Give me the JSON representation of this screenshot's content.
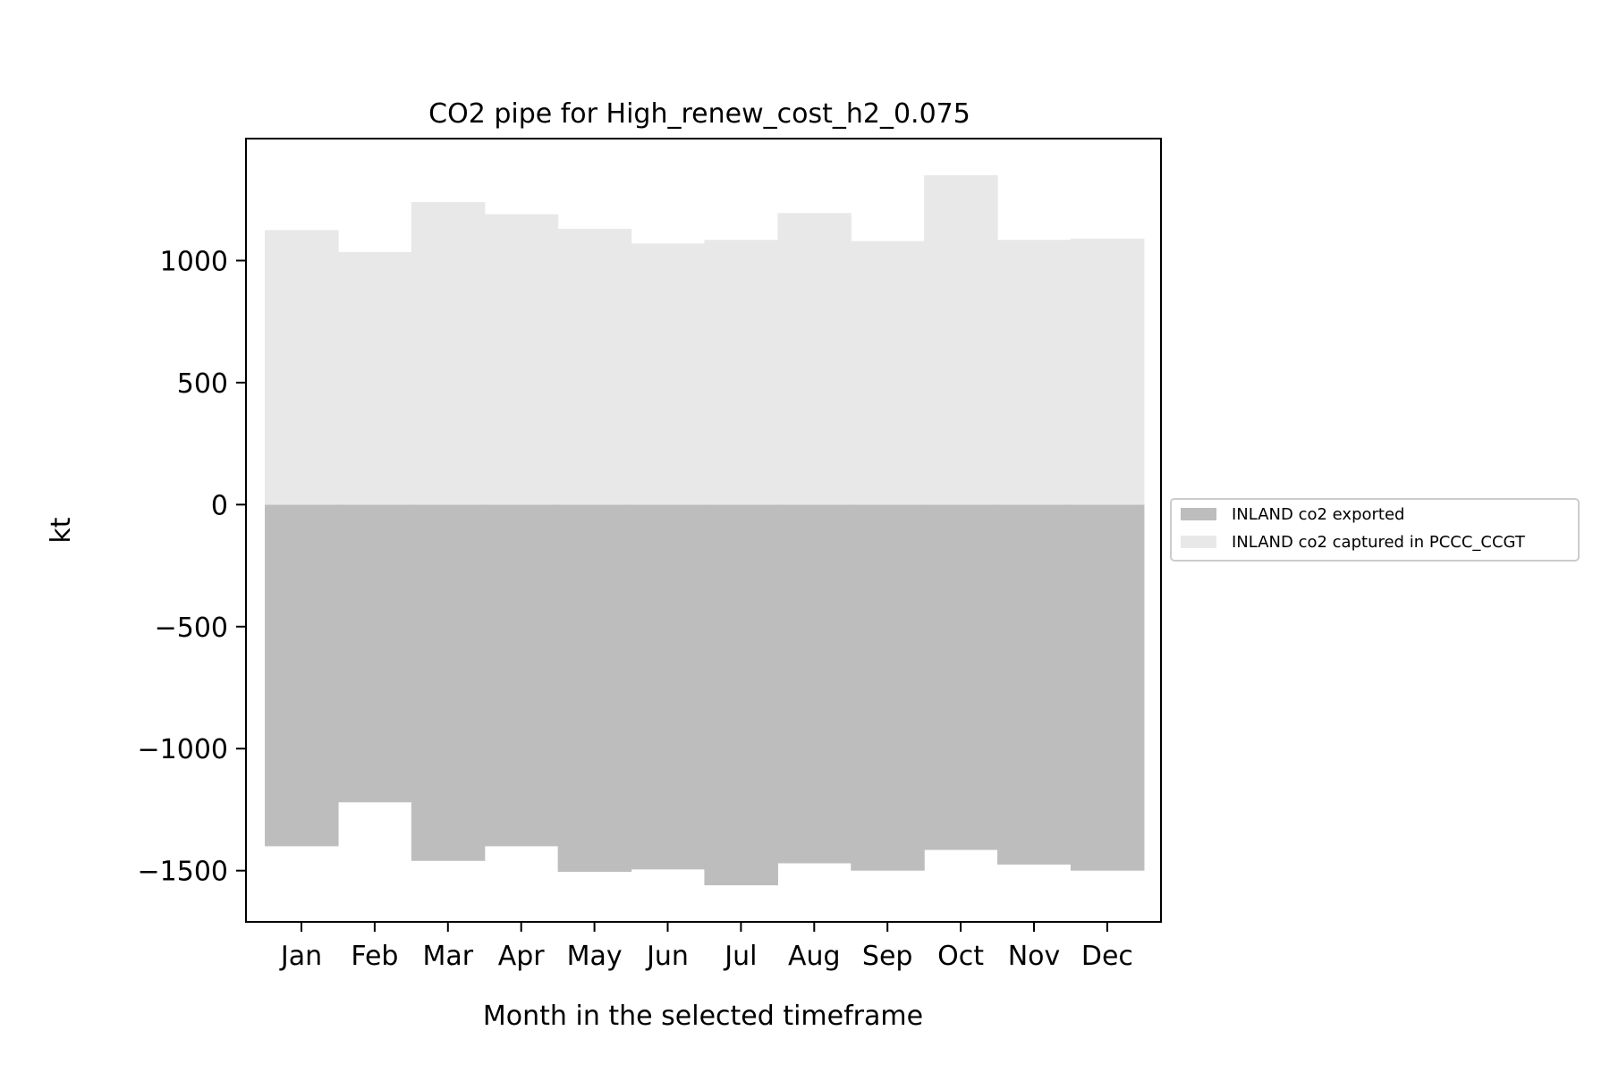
{
  "chart_data": {
    "type": "area",
    "title": "CO2 pipe for High_renew_cost_h2_0.075",
    "xlabel": "Month in the selected timeframe",
    "ylabel": "kt",
    "categories": [
      "Jan",
      "Feb",
      "Mar",
      "Apr",
      "May",
      "Jun",
      "Jul",
      "Aug",
      "Sep",
      "Oct",
      "Nov",
      "Dec"
    ],
    "series": [
      {
        "name": "INLAND co2 exported",
        "values": [
          -1400,
          -1220,
          -1460,
          -1400,
          -1505,
          -1495,
          -1560,
          -1470,
          -1500,
          -1415,
          -1475,
          -1500
        ],
        "color": "#bdbdbd"
      },
      {
        "name": "INLAND co2 captured in PCCC_CCGT",
        "values": [
          1125,
          1035,
          1240,
          1190,
          1130,
          1070,
          1085,
          1195,
          1080,
          1350,
          1085,
          1090
        ],
        "color": "#e8e8e8"
      }
    ],
    "yticks": [
      -1500,
      -1000,
      -500,
      0,
      500,
      1000
    ],
    "ytick_labels": [
      "−1500",
      "−1000",
      "−500",
      "0",
      "500",
      "1000"
    ],
    "ylim": [
      -1710,
      1500
    ],
    "step": "mid",
    "stacked": "positive-up / negative-down",
    "grid": false,
    "legend_position": "right, outside plot"
  }
}
